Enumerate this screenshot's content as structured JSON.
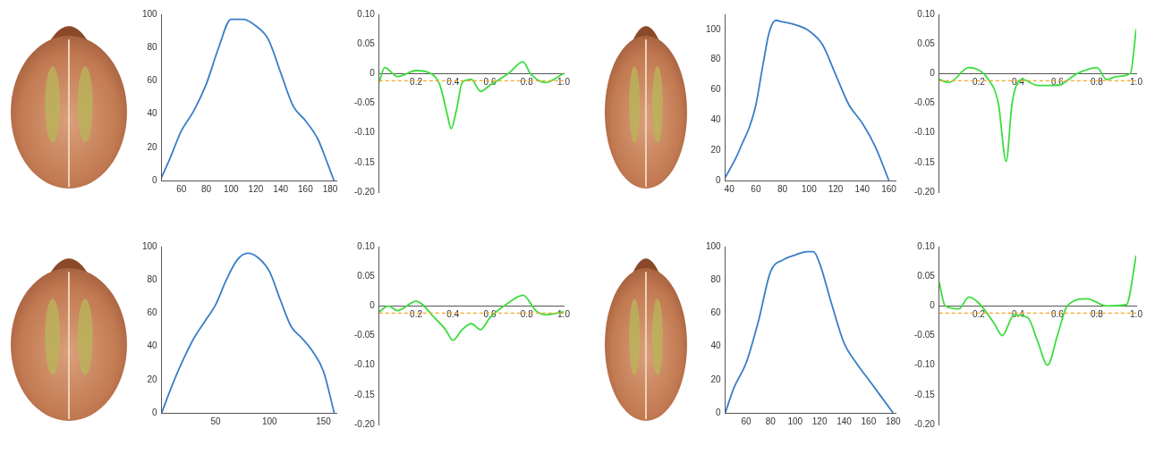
{
  "chart_data": [
    {
      "type": "line",
      "color": "#3a7dc9",
      "grid": false,
      "xlim": [
        44,
        185
      ],
      "ylim": [
        0,
        100
      ],
      "xticks": [
        60,
        80,
        100,
        120,
        140,
        160,
        180
      ],
      "yticks": [
        0,
        20,
        40,
        60,
        80,
        100
      ],
      "x": [
        44,
        50,
        60,
        70,
        80,
        90,
        100,
        110,
        120,
        130,
        140,
        150,
        160,
        170,
        178,
        183
      ],
      "values": [
        2,
        12,
        30,
        42,
        58,
        80,
        97,
        97,
        93,
        85,
        65,
        45,
        36,
        25,
        10,
        0
      ]
    },
    {
      "type": "line",
      "color": "#3ddc3d",
      "grid": false,
      "xlim": [
        0,
        1
      ],
      "ylim": [
        -0.2,
        0.1
      ],
      "xticks": [
        0.2,
        0.4,
        0.6,
        0.8,
        {
          "value": 1,
          "label": "1.0"
        }
      ],
      "yticks": [
        {
          "value": 0.1,
          "label": "0.10"
        },
        0.05,
        0,
        -0.05,
        {
          "value": -0.1,
          "label": "-0.10"
        },
        -0.15,
        {
          "value": -0.2,
          "label": "-0.20"
        }
      ],
      "hline": {
        "value": -0.012,
        "color": "#f5a623",
        "line_style": "dashed"
      },
      "x": [
        0,
        0.03,
        0.1,
        0.2,
        0.28,
        0.33,
        0.37,
        0.39,
        0.42,
        0.45,
        0.5,
        0.55,
        0.6,
        0.7,
        0.78,
        0.82,
        0.9,
        1.0
      ],
      "values": [
        -0.015,
        0.01,
        -0.005,
        0.005,
        0,
        -0.02,
        -0.07,
        -0.093,
        -0.06,
        -0.015,
        -0.01,
        -0.03,
        -0.02,
        0,
        0.02,
        0,
        -0.015,
        0
      ]
    },
    {
      "type": "line",
      "color": "#3a7dc9",
      "grid": false,
      "xlim": [
        37,
        165
      ],
      "ylim": [
        0,
        110
      ],
      "xticks": [
        40,
        60,
        80,
        100,
        120,
        140,
        160
      ],
      "yticks": [
        0,
        20,
        40,
        60,
        80,
        100
      ],
      "x": [
        37,
        45,
        50,
        55,
        60,
        65,
        70,
        75,
        80,
        90,
        100,
        110,
        120,
        130,
        140,
        150,
        160
      ],
      "values": [
        2,
        15,
        25,
        35,
        50,
        75,
        98,
        106,
        105,
        103,
        99,
        90,
        70,
        50,
        38,
        22,
        0
      ]
    },
    {
      "type": "line",
      "color": "#3ddc3d",
      "grid": false,
      "xlim": [
        0,
        1
      ],
      "ylim": [
        -0.2,
        0.1
      ],
      "xticks": [
        0.2,
        0.4,
        0.6,
        0.8,
        {
          "value": 1,
          "label": "1.0"
        }
      ],
      "yticks": [
        {
          "value": 0.1,
          "label": "0.10"
        },
        0.05,
        0,
        -0.05,
        {
          "value": -0.1,
          "label": "-0.10"
        },
        -0.15,
        {
          "value": -0.2,
          "label": "-0.20"
        }
      ],
      "hline": {
        "value": -0.012,
        "color": "#f5a623",
        "line_style": "dashed"
      },
      "x": [
        0,
        0.05,
        0.15,
        0.25,
        0.3,
        0.34,
        0.37,
        0.42,
        0.5,
        0.6,
        0.7,
        0.8,
        0.85,
        0.9,
        0.97,
        1.0
      ],
      "values": [
        -0.01,
        -0.015,
        0.01,
        -0.01,
        -0.05,
        -0.148,
        -0.05,
        -0.01,
        -0.02,
        -0.02,
        0,
        0.01,
        -0.01,
        -0.005,
        0,
        0.075
      ]
    },
    {
      "type": "line",
      "color": "#3a7dc9",
      "grid": false,
      "xlim": [
        0,
        162
      ],
      "ylim": [
        0,
        100
      ],
      "xticks": [
        50,
        100,
        150
      ],
      "yticks": [
        0,
        20,
        40,
        60,
        80,
        100
      ],
      "x": [
        0,
        10,
        20,
        30,
        40,
        50,
        60,
        70,
        80,
        90,
        100,
        110,
        120,
        130,
        140,
        150,
        160
      ],
      "values": [
        0,
        17,
        32,
        45,
        55,
        65,
        80,
        92,
        96,
        93,
        85,
        68,
        52,
        45,
        37,
        25,
        0
      ]
    },
    {
      "type": "line",
      "color": "#3ddc3d",
      "grid": false,
      "xlim": [
        0,
        1
      ],
      "ylim": [
        -0.2,
        0.1
      ],
      "xticks": [
        0.2,
        0.4,
        0.6,
        0.8,
        {
          "value": 1,
          "label": "1.0"
        }
      ],
      "yticks": [
        {
          "value": 0.1,
          "label": "0.10"
        },
        0.05,
        0,
        -0.05,
        {
          "value": -0.1,
          "label": "-0.10"
        },
        -0.15,
        {
          "value": -0.2,
          "label": "-0.20"
        }
      ],
      "hline": {
        "value": -0.012,
        "color": "#f5a623",
        "line_style": "dashed"
      },
      "x": [
        0,
        0.05,
        0.1,
        0.2,
        0.3,
        0.36,
        0.4,
        0.45,
        0.5,
        0.55,
        0.6,
        0.7,
        0.78,
        0.85,
        0.9,
        1.0
      ],
      "values": [
        -0.01,
        0,
        -0.008,
        0.008,
        -0.02,
        -0.04,
        -0.058,
        -0.04,
        -0.03,
        -0.04,
        -0.02,
        0.005,
        0.018,
        -0.008,
        -0.015,
        -0.01
      ]
    },
    {
      "type": "line",
      "color": "#3a7dc9",
      "grid": false,
      "xlim": [
        43,
        182
      ],
      "ylim": [
        0,
        100
      ],
      "xticks": [
        60,
        80,
        100,
        120,
        140,
        160,
        180
      ],
      "yticks": [
        0,
        20,
        40,
        60,
        80,
        100
      ],
      "x": [
        43,
        50,
        60,
        70,
        80,
        90,
        100,
        110,
        115,
        120,
        130,
        140,
        150,
        160,
        170,
        180
      ],
      "values": [
        0,
        15,
        30,
        55,
        85,
        92,
        95,
        97,
        97,
        90,
        65,
        42,
        30,
        20,
        10,
        0
      ]
    },
    {
      "type": "line",
      "color": "#3ddc3d",
      "grid": false,
      "xlim": [
        0,
        1
      ],
      "ylim": [
        -0.2,
        0.1
      ],
      "xticks": [
        0.2,
        0.4,
        0.6,
        0.8,
        {
          "value": 1,
          "label": "1.0"
        }
      ],
      "yticks": [
        {
          "value": 0.1,
          "label": "0.10"
        },
        0.05,
        0,
        -0.05,
        {
          "value": -0.1,
          "label": "-0.10"
        },
        -0.15,
        {
          "value": -0.2,
          "label": "-0.20"
        }
      ],
      "hline": {
        "value": -0.012,
        "color": "#f5a623",
        "line_style": "dashed"
      },
      "x": [
        0,
        0.03,
        0.1,
        0.15,
        0.2,
        0.28,
        0.32,
        0.38,
        0.45,
        0.5,
        0.55,
        0.6,
        0.65,
        0.75,
        0.85,
        0.95,
        1.0
      ],
      "values": [
        0.04,
        0,
        -0.005,
        0.015,
        0.005,
        -0.03,
        -0.05,
        -0.015,
        -0.02,
        -0.06,
        -0.1,
        -0.05,
        0,
        0.012,
        0,
        0.002,
        0.085
      ]
    }
  ]
}
